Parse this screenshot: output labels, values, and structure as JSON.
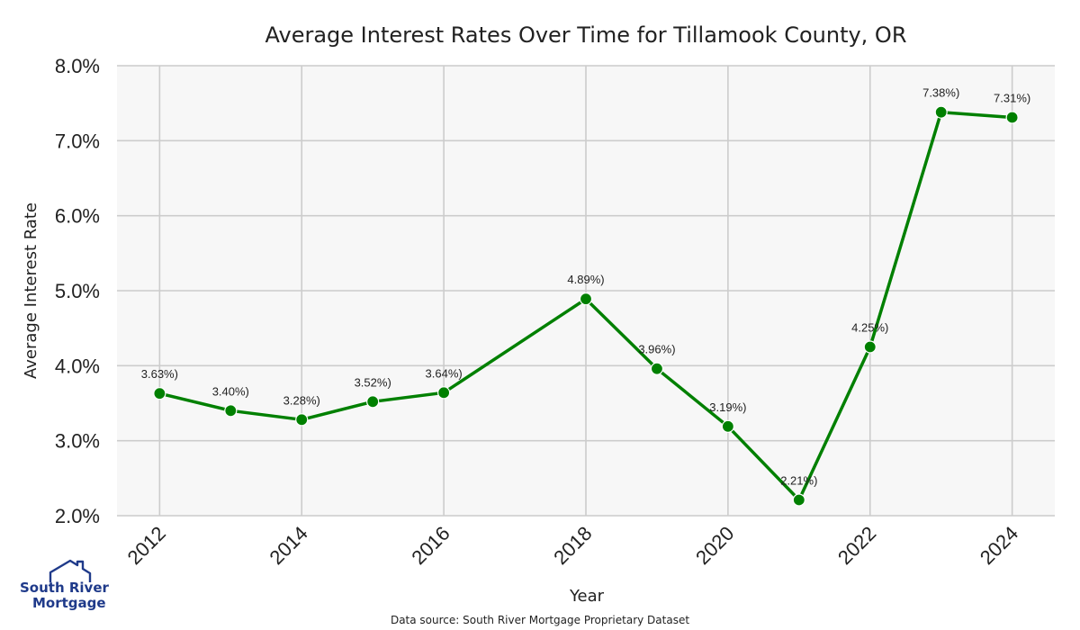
{
  "chart_data": {
    "type": "line",
    "title": "Average Interest Rates Over Time for Tillamook County, OR",
    "xlabel": "Year",
    "ylabel": "Average Interest Rate",
    "x": [
      2012,
      2013,
      2014,
      2015,
      2016,
      2018,
      2019,
      2020,
      2021,
      2022,
      2023,
      2024
    ],
    "y": [
      3.63,
      3.4,
      3.28,
      3.52,
      3.64,
      4.89,
      3.96,
      3.19,
      2.21,
      4.25,
      7.38,
      7.31
    ],
    "point_labels": [
      "3.63%)",
      "3.40%)",
      "3.28%)",
      "3.52%)",
      "3.64%)",
      "4.89%)",
      "3.96%)",
      "3.19%)",
      "2.21%)",
      "4.25%)",
      "7.38%)",
      "7.31%)"
    ],
    "xlim": [
      2011.4,
      2024.6
    ],
    "ylim": [
      2.0,
      8.0
    ],
    "x_ticks": [
      2012,
      2014,
      2016,
      2018,
      2020,
      2022,
      2024
    ],
    "x_tick_labels": [
      "2012",
      "2014",
      "2016",
      "2018",
      "2020",
      "2022",
      "2024"
    ],
    "y_ticks": [
      2.0,
      3.0,
      4.0,
      5.0,
      6.0,
      7.0,
      8.0
    ],
    "y_tick_labels": [
      "2.0%",
      "3.0%",
      "4.0%",
      "5.0%",
      "6.0%",
      "7.0%",
      "8.0%"
    ],
    "grid": true,
    "line_color": "#008000",
    "background_color": "#f7f7f7",
    "grid_color": "#cccccc"
  },
  "footer": {
    "source": "Data source: South River Mortgage Proprietary Dataset"
  },
  "logo": {
    "line1": "South River",
    "line2": "Mortgage",
    "color": "#1f3a8a"
  }
}
